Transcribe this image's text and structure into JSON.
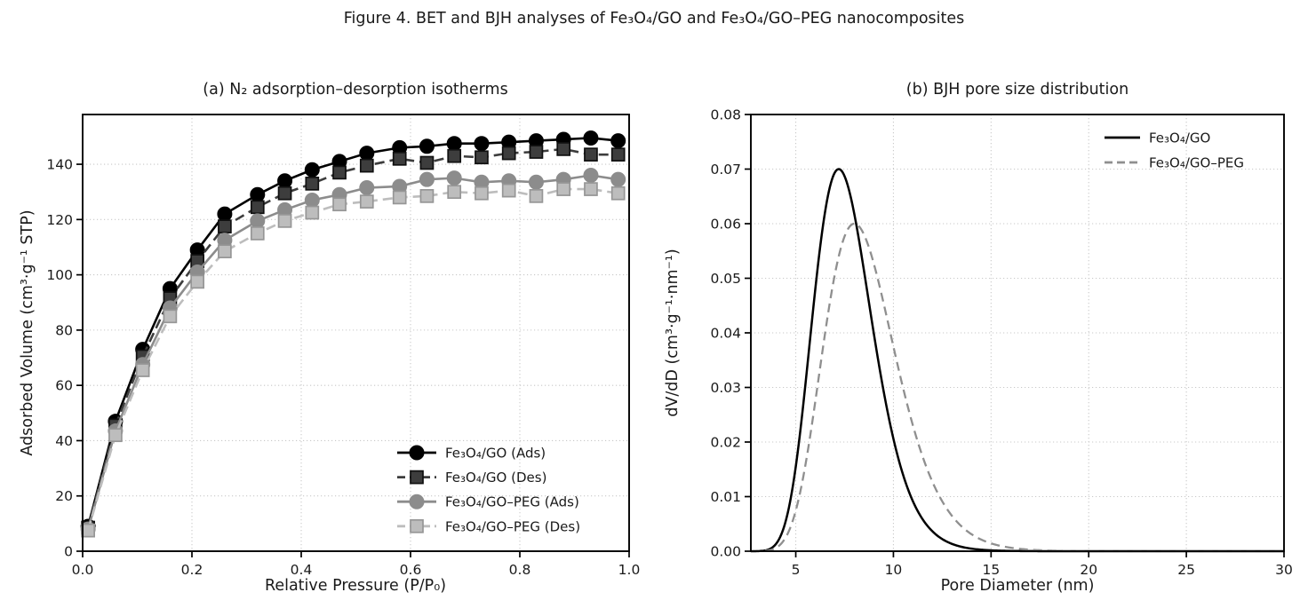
{
  "figure": {
    "title": "Figure 4. BET and BJH analyses of Fe₃O₄/GO and Fe₃O₄/GO–PEG nanocomposites",
    "background": "#ffffff"
  },
  "style": {
    "grid_color": "#c9c9c9",
    "spine_color": "#000000",
    "text_color": "#1a1a1a",
    "black": "#000000",
    "dark_gray": "#3d3d3d",
    "mid_gray": "#8c8c8c",
    "light_gray": "#bdbdbd"
  },
  "chart_data": [
    {
      "id": "isotherms",
      "type": "line",
      "title": "(a) N₂ adsorption–desorption isotherms",
      "xlabel": "Relative Pressure (P/P₀)",
      "ylabel": "Adsorbed Volume (cm³·g⁻¹ STP)",
      "xlim": [
        0.0,
        1.0
      ],
      "ylim": [
        0,
        158
      ],
      "xticks": [
        0.0,
        0.2,
        0.4,
        0.6,
        0.8,
        1.0
      ],
      "xtick_labels": [
        "0.0",
        "0.2",
        "0.4",
        "0.6",
        "0.8",
        "1.0"
      ],
      "yticks": [
        0,
        20,
        40,
        60,
        80,
        100,
        120,
        140
      ],
      "ytick_labels": [
        "0",
        "20",
        "40",
        "60",
        "80",
        "100",
        "120",
        "140"
      ],
      "grid": "dotted",
      "legend_position": "lower right",
      "x": [
        0.01,
        0.06,
        0.11,
        0.16,
        0.21,
        0.26,
        0.32,
        0.37,
        0.42,
        0.47,
        0.52,
        0.58,
        0.63,
        0.68,
        0.73,
        0.78,
        0.83,
        0.88,
        0.93,
        0.98
      ],
      "series": [
        {
          "name": "Fe₃O₄/GO (Ads)",
          "color": "#000000",
          "marker_edge": "#000000",
          "line": "solid",
          "marker": "circle",
          "values": [
            9,
            47,
            73,
            95,
            109,
            122,
            129,
            134,
            138,
            141,
            144,
            146,
            146.5,
            147.5,
            147.5,
            148,
            148.5,
            149,
            149.5,
            148.5
          ]
        },
        {
          "name": "Fe₃O₄/GO (Des)",
          "color": "#3d3d3d",
          "marker_edge": "#101010",
          "line": "dashed",
          "marker": "square",
          "values": [
            8.5,
            45.5,
            70.5,
            91.5,
            105,
            117.5,
            124.5,
            129.5,
            133,
            137,
            139.5,
            142,
            140.5,
            143,
            142.5,
            144,
            144.5,
            145.5,
            143.5,
            143.5
          ]
        },
        {
          "name": "Fe₃O₄/GO–PEG (Ads)",
          "color": "#8c8c8c",
          "marker_edge": "#8c8c8c",
          "line": "solid",
          "marker": "circle",
          "values": [
            8,
            43.5,
            67.5,
            88,
            101,
            112.5,
            119.5,
            123.5,
            127,
            129,
            131.5,
            132,
            134.5,
            135,
            133.5,
            134,
            133.5,
            134.5,
            136,
            134.5
          ]
        },
        {
          "name": "Fe₃O₄/GO–PEG (Des)",
          "color": "#bdbdbd",
          "marker_edge": "#969696",
          "line": "dashed",
          "marker": "square",
          "values": [
            7.5,
            42,
            65.5,
            85,
            97.5,
            108.5,
            115,
            119.5,
            122.5,
            125.5,
            126.5,
            128,
            128.5,
            130,
            129.5,
            130.5,
            128.5,
            131,
            131,
            129.5
          ]
        }
      ]
    },
    {
      "id": "bjh-pore-size",
      "type": "line",
      "title": "(b) BJH pore size distribution",
      "xlabel": "Pore Diameter (nm)",
      "ylabel": "dV/dD (cm³·g⁻¹·nm⁻¹)",
      "xlim": [
        2.7,
        30
      ],
      "ylim": [
        0,
        0.08
      ],
      "xticks": [
        5,
        10,
        15,
        20,
        25,
        30
      ],
      "xtick_labels": [
        "5",
        "10",
        "15",
        "20",
        "25",
        "30"
      ],
      "yticks": [
        0,
        0.01,
        0.02,
        0.03,
        0.04,
        0.05,
        0.06,
        0.07,
        0.08
      ],
      "ytick_labels": [
        "0.00",
        "0.01",
        "0.02",
        "0.03",
        "0.04",
        "0.05",
        "0.06",
        "0.07",
        "0.08"
      ],
      "grid": "dotted",
      "legend_position": "upper right",
      "series": [
        {
          "name": "Fe₃O₄/GO",
          "color": "#000000",
          "line": "solid",
          "curve": {
            "shape": "lognormal",
            "peak_nm": 7.2,
            "peak_value": 0.07,
            "sigma_ln": 0.21
          },
          "sample_x": [
            3,
            4,
            4.5,
            5,
            5.5,
            6,
            6.5,
            7,
            7.2,
            7.5,
            8,
            8.5,
            9,
            9.5,
            10,
            11,
            12,
            13,
            14,
            15,
            16,
            20,
            25,
            30
          ],
          "sample_y": [
            0.0001,
            0.0014,
            0.0057,
            0.0155,
            0.0308,
            0.048,
            0.0622,
            0.0694,
            0.07,
            0.0687,
            0.0617,
            0.0512,
            0.0398,
            0.0293,
            0.0206,
            0.0091,
            0.0036,
            0.0013,
            0.0005,
            0.0002,
            0.0001,
            0,
            0,
            0
          ]
        },
        {
          "name": "Fe₃O₄/GO–PEG",
          "color": "#8f8f8f",
          "line": "dashed",
          "curve": {
            "shape": "lognormal",
            "peak_nm": 8.0,
            "peak_value": 0.06,
            "sigma_ln": 0.23
          },
          "sample_x": [
            3,
            4,
            4.5,
            5,
            5.5,
            6,
            6.5,
            7,
            7.2,
            7.5,
            8,
            8.5,
            9,
            9.5,
            10,
            11,
            12,
            13,
            14,
            15,
            16,
            20,
            25,
            30
          ],
          "sample_y": [
            0,
            0.0005,
            0.0026,
            0.0074,
            0.0159,
            0.0274,
            0.0399,
            0.0507,
            0.054,
            0.0577,
            0.06,
            0.058,
            0.0526,
            0.0454,
            0.0375,
            0.023,
            0.0127,
            0.0065,
            0.0031,
            0.0014,
            0.0006,
            0,
            0,
            0
          ]
        }
      ]
    }
  ]
}
